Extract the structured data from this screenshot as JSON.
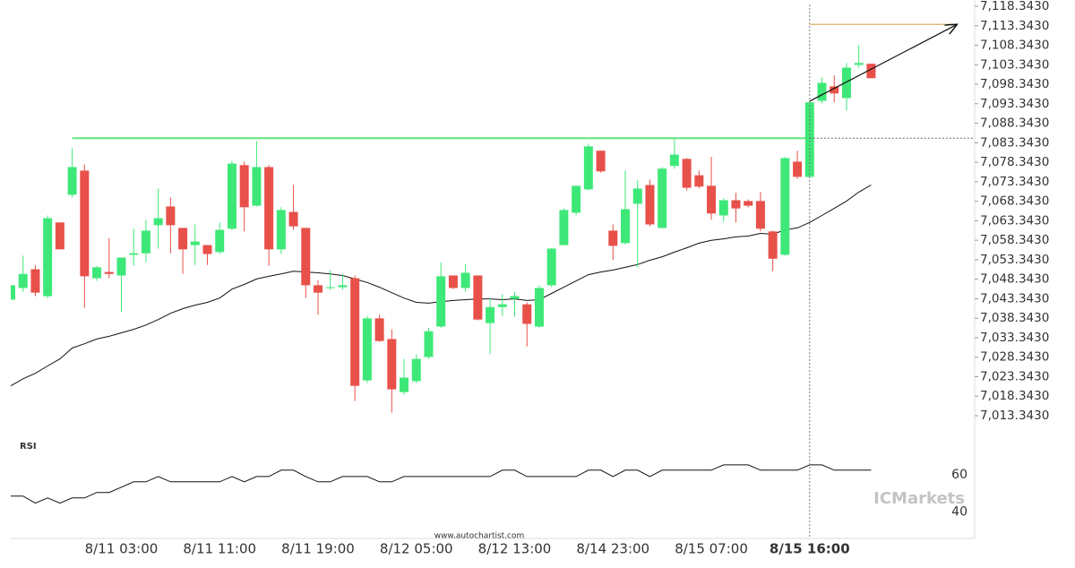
{
  "chart_data": [
    {
      "type": "candlestick",
      "categories": [
        null,
        null,
        null,
        null,
        null,
        null,
        null,
        null,
        null,
        "8/11 03:00",
        null,
        null,
        null,
        null,
        null,
        null,
        null,
        "8/11 11:00",
        null,
        null,
        null,
        null,
        null,
        null,
        null,
        "8/11 19:00",
        null,
        null,
        null,
        null,
        null,
        null,
        null,
        "8/12 05:00",
        null,
        null,
        null,
        null,
        null,
        null,
        null,
        "8/12 13:00",
        null,
        null,
        null,
        null,
        null,
        null,
        null,
        "8/14 23:00",
        null,
        null,
        null,
        null,
        null,
        null,
        null,
        "8/15 07:00",
        null,
        null,
        null,
        null,
        null,
        null,
        null,
        "8/15 16:00",
        null,
        null,
        null,
        null,
        null
      ],
      "open": [
        7043.1,
        7046.1,
        7050.9,
        7044.0,
        7062.9,
        7070.0,
        7076.2,
        7048.6,
        7050.2,
        7049.3,
        7054.6,
        7055.0,
        7062.2,
        7067.0,
        7061.5,
        7057.1,
        7057.1,
        7055.3,
        7061.3,
        7077.6,
        7067.2,
        7077.1,
        7056.0,
        7065.6,
        7061.5,
        7046.8,
        7046.1,
        7046.3,
        7048.6,
        7022.4,
        7038.3,
        7033.0,
        7019.4,
        7022.2,
        7028.4,
        7036.2,
        7049.3,
        7046.1,
        7049.3,
        7037.1,
        7041.2,
        7043.3,
        7041.9,
        7036.2,
        7046.8,
        7057.1,
        7065.4,
        7071.4,
        7081.3,
        7060.8,
        7057.6,
        7067.7,
        7072.5,
        7061.5,
        7077.4,
        7079.2,
        7075.0,
        7072.3,
        7064.7,
        7068.6,
        7068.4,
        7068.4,
        7060.6,
        7054.6,
        7078.5,
        7074.6,
        7094.1,
        7097.8,
        7094.8,
        7103.3,
        7103.6
      ],
      "high": [
        7046.8,
        7054.4,
        7052.0,
        7064.7,
        7062.9,
        7081.9,
        7077.8,
        7051.8,
        7058.9,
        7053.9,
        7061.3,
        7063.6,
        7071.6,
        7069.3,
        7061.5,
        7062.4,
        7057.1,
        7062.9,
        7078.7,
        7078.5,
        7083.8,
        7077.6,
        7066.8,
        7072.5,
        7061.5,
        7048.1,
        7050.7,
        7049.7,
        7049.3,
        7038.9,
        7039.2,
        7035.5,
        7027.9,
        7029.1,
        7035.9,
        7052.7,
        7049.3,
        7052.3,
        7049.3,
        7043.5,
        7044.5,
        7045.1,
        7042.4,
        7046.8,
        7056.4,
        7066.5,
        7072.3,
        7083.1,
        7081.3,
        7062.4,
        7076.2,
        7073.7,
        7073.9,
        7077.1,
        7084.3,
        7079.4,
        7076.2,
        7079.7,
        7069.1,
        7070.5,
        7068.8,
        7070.7,
        7060.8,
        7079.7,
        7081.3,
        7093.9,
        7100.1,
        7100.6,
        7103.8,
        7108.4,
        7103.6
      ],
      "low": [
        7043.1,
        7045.1,
        7044.0,
        7043.5,
        7056.0,
        7069.3,
        7041.0,
        7047.9,
        7048.6,
        7039.9,
        7051.8,
        7052.7,
        7056.2,
        7055.0,
        7049.7,
        7052.0,
        7052.0,
        7054.8,
        7061.0,
        7060.6,
        7067.0,
        7051.8,
        7054.8,
        7061.0,
        7043.5,
        7039.2,
        7045.6,
        7045.6,
        7017.1,
        7021.7,
        7032.3,
        7014.1,
        7018.7,
        7021.7,
        7027.9,
        7035.9,
        7045.8,
        7045.1,
        7037.8,
        7029.1,
        7038.9,
        7038.7,
        7031.1,
        7035.9,
        7046.3,
        7057.1,
        7064.7,
        7071.1,
        7075.7,
        7053.2,
        7057.3,
        7051.4,
        7061.9,
        7061.3,
        7076.7,
        7071.1,
        7071.6,
        7063.6,
        7063.1,
        7062.9,
        7066.8,
        7060.6,
        7050.4,
        7054.4,
        7074.1,
        7074.4,
        7093.4,
        7093.7,
        7091.6,
        7102.6,
        7099.9
      ],
      "close": [
        7046.8,
        7049.7,
        7044.9,
        7064.0,
        7056.0,
        7077.1,
        7049.1,
        7051.4,
        7049.7,
        7053.9,
        7055.0,
        7060.8,
        7064.0,
        7062.2,
        7056.0,
        7058.0,
        7054.8,
        7061.0,
        7078.0,
        7066.8,
        7077.1,
        7056.0,
        7066.1,
        7061.9,
        7046.8,
        7044.9,
        7046.3,
        7046.8,
        7021.0,
        7038.3,
        7032.5,
        7020.1,
        7023.1,
        7027.9,
        7035.0,
        7049.1,
        7046.1,
        7050.0,
        7038.0,
        7041.2,
        7041.9,
        7044.0,
        7036.9,
        7046.1,
        7056.2,
        7066.1,
        7072.3,
        7082.4,
        7076.0,
        7056.9,
        7066.3,
        7071.6,
        7062.4,
        7076.7,
        7080.3,
        7071.8,
        7072.1,
        7065.2,
        7068.6,
        7066.5,
        7067.2,
        7061.3,
        7053.6,
        7079.4,
        7074.6,
        7093.7,
        7098.7,
        7096.0,
        7102.6,
        7103.8,
        7099.9
      ],
      "up_color": "#3ee878",
      "down_color": "#e8504a",
      "series": [
        {
          "color": "#111111",
          "values": [
            7021.0,
            7022.8,
            7024.2,
            7026.1,
            7027.9,
            7030.7,
            7031.8,
            7033.0,
            7033.7,
            7034.6,
            7035.5,
            7036.6,
            7038.0,
            7039.6,
            7040.8,
            7041.7,
            7042.4,
            7043.5,
            7045.8,
            7047.0,
            7048.4,
            7049.1,
            7049.7,
            7050.4,
            7050.2,
            7050.0,
            7049.7,
            7049.3,
            7048.4,
            7047.5,
            7046.3,
            7044.9,
            7043.5,
            7042.4,
            7042.2,
            7042.6,
            7042.9,
            7043.1,
            7043.3,
            7043.3,
            7043.1,
            7043.3,
            7042.9,
            7043.1,
            7044.7,
            7046.3,
            7047.9,
            7049.5,
            7050.2,
            7050.7,
            7051.4,
            7052.1,
            7053.2,
            7054.1,
            7055.3,
            7056.4,
            7057.6,
            7058.3,
            7058.7,
            7059.2,
            7059.4,
            7060.1,
            7059.9,
            7061.0,
            7061.5,
            7062.9,
            7064.7,
            7066.5,
            7068.4,
            7070.7,
            7072.5
          ]
        }
      ],
      "ylim": [
        7007.37,
        7119.95
      ],
      "yticks": [
        {
          "value": 7013.343,
          "label": "7,013.3430"
        },
        {
          "value": 7018.343,
          "label": "7,018.3430"
        },
        {
          "value": 7023.343,
          "label": "7,023.3430"
        },
        {
          "value": 7028.343,
          "label": "7,028.3430"
        },
        {
          "value": 7033.343,
          "label": "7,033.3430"
        },
        {
          "value": 7038.343,
          "label": "7,038.3430"
        },
        {
          "value": 7043.343,
          "label": "7,043.3430"
        },
        {
          "value": 7048.343,
          "label": "7,048.3430"
        },
        {
          "value": 7053.343,
          "label": "7,053.3430"
        },
        {
          "value": 7058.343,
          "label": "7,058.3430"
        },
        {
          "value": 7063.343,
          "label": "7,063.3430"
        },
        {
          "value": 7068.343,
          "label": "7,068.3430"
        },
        {
          "value": 7073.343,
          "label": "7,073.3430"
        },
        {
          "value": 7078.343,
          "label": "7,078.3430"
        },
        {
          "value": 7083.343,
          "label": "7,083.3430"
        },
        {
          "value": 7088.343,
          "label": "7,088.3430"
        },
        {
          "value": 7093.343,
          "label": "7,093.3430"
        },
        {
          "value": 7098.343,
          "label": "7,098.3430"
        },
        {
          "value": 7103.343,
          "label": "7,103.3430"
        },
        {
          "value": 7108.343,
          "label": "7,108.3430"
        },
        {
          "value": 7113.343,
          "label": "7,113.3430"
        },
        {
          "value": 7118.343,
          "label": "7,118.3430"
        }
      ],
      "marker_index": 65,
      "levels": [
        {
          "value": 7084.5,
          "color": "#5ee67a",
          "from": 5,
          "to": 65
        }
      ],
      "forecast": {
        "value": 7113.7,
        "color": "#d9a45c"
      },
      "arrow": {
        "from": [
          65,
          7094.0
        ],
        "to": [
          77,
          7113.7
        ]
      }
    },
    {
      "type": "line",
      "title": "RSI",
      "values": [
        48.6,
        48.6,
        44.8,
        47.6,
        44.8,
        47.6,
        47.6,
        50.5,
        50.5,
        53.3,
        56.2,
        56.2,
        59.0,
        56.2,
        56.2,
        56.2,
        56.2,
        56.2,
        59.0,
        56.2,
        59.0,
        59.0,
        62.4,
        62.4,
        59.0,
        56.2,
        56.2,
        59.0,
        59.0,
        59.0,
        56.2,
        56.2,
        59.0,
        59.0,
        59.0,
        59.0,
        59.0,
        59.0,
        59.0,
        59.0,
        62.4,
        62.4,
        59.0,
        59.0,
        59.0,
        59.0,
        59.0,
        62.4,
        62.4,
        59.0,
        62.4,
        62.4,
        59.0,
        62.4,
        62.4,
        62.4,
        62.4,
        62.4,
        65.2,
        65.2,
        65.2,
        62.4,
        62.4,
        62.4,
        62.4,
        65.2,
        65.2,
        62.4,
        62.4,
        62.4,
        62.4
      ],
      "color": "#111111",
      "ylim": [
        26,
        79
      ],
      "yticks": [
        40,
        60
      ]
    }
  ],
  "watermark": {
    "site": "www.autochartist.com",
    "brand": "ICMarkets"
  }
}
